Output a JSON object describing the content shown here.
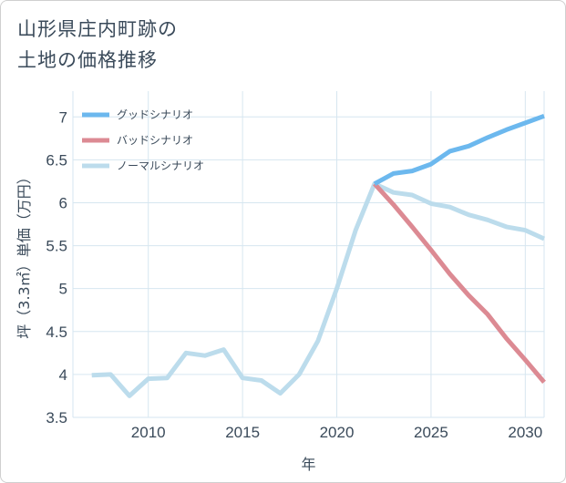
{
  "title_lines": [
    "山形県庄内町跡の",
    "土地の価格推移"
  ],
  "chart_data": {
    "type": "line",
    "xlabel": "年",
    "ylabel": "坪（3.3㎡）単価（万円）",
    "xlim": [
      2006,
      2031
    ],
    "ylim": [
      3.5,
      7.3
    ],
    "x_ticks": [
      2010,
      2015,
      2020,
      2025,
      2030
    ],
    "y_ticks": [
      3.5,
      4,
      4.5,
      5,
      5.5,
      6,
      6.5,
      7
    ],
    "grid": true,
    "legend_position": "top-left",
    "series": [
      {
        "name": "グッドシナリオ",
        "color": "#6cb8ee",
        "x": [
          2022,
          2023,
          2024,
          2025,
          2026,
          2027,
          2028,
          2029,
          2030,
          2031
        ],
        "y": [
          6.22,
          6.34,
          6.37,
          6.45,
          6.6,
          6.66,
          6.76,
          6.85,
          6.93,
          7.01
        ]
      },
      {
        "name": "バッドシナリオ",
        "color": "#dc8a93",
        "x": [
          2022,
          2023,
          2024,
          2025,
          2026,
          2027,
          2028,
          2029,
          2030,
          2031
        ],
        "y": [
          6.22,
          5.98,
          5.72,
          5.45,
          5.17,
          4.92,
          4.7,
          4.42,
          4.17,
          3.91
        ]
      },
      {
        "name": "ノーマルシナリオ",
        "color": "#bcdcec",
        "x": [
          2007,
          2008,
          2009,
          2010,
          2011,
          2012,
          2013,
          2014,
          2015,
          2016,
          2017,
          2018,
          2019,
          2020,
          2021,
          2022,
          2023,
          2024,
          2025,
          2026,
          2027,
          2028,
          2029,
          2030,
          2031
        ],
        "y": [
          3.99,
          4.0,
          3.75,
          3.95,
          3.96,
          4.25,
          4.22,
          4.29,
          3.96,
          3.93,
          3.78,
          4.0,
          4.39,
          5.0,
          5.68,
          6.22,
          6.12,
          6.09,
          5.99,
          5.95,
          5.86,
          5.8,
          5.72,
          5.68,
          5.58
        ]
      }
    ]
  }
}
